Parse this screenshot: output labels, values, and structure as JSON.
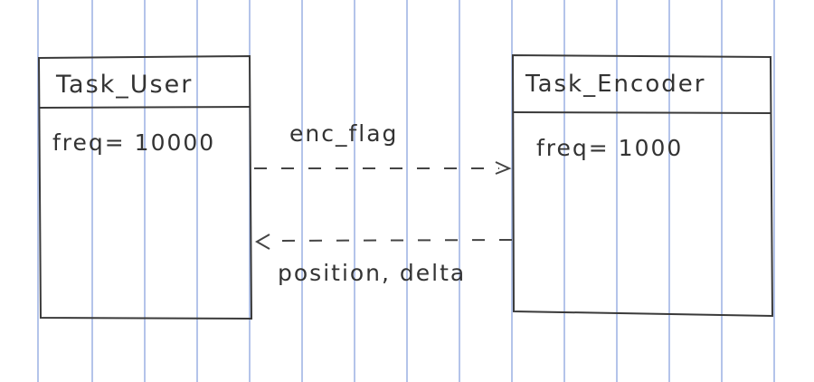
{
  "colors": {
    "paper": "#ffffff",
    "rule_lines": "#6f8fd8",
    "ink": "#3a3a3a"
  },
  "tasks": [
    {
      "title": "Task_User",
      "attribute": "freq= 10000"
    },
    {
      "title": "Task_Encoder",
      "attribute": "freq= 1000"
    }
  ],
  "links": [
    {
      "label": "enc_flag",
      "direction": "Task_User to Task_Encoder",
      "style": "dashed"
    },
    {
      "label": "position, delta",
      "direction": "Task_Encoder to Task_User",
      "style": "dashed"
    }
  ]
}
